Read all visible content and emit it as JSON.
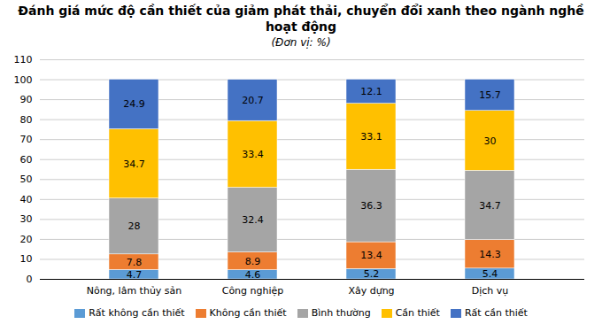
{
  "chart_data": {
    "type": "bar",
    "stacked": true,
    "title": "Đánh giá mức độ cần thiết của giảm phát thải, chuyển đổi xanh theo ngành nghề hoạt động",
    "subtitle": "(Đơn vị: %)",
    "categories": [
      "Nông, lâm thủy sản",
      "Công nghiệp",
      "Xây dựng",
      "Dịch vụ"
    ],
    "series": [
      {
        "name": "Rất không cần thiết",
        "color": "#5B9BD5",
        "values": [
          4.7,
          4.6,
          5.2,
          5.4
        ]
      },
      {
        "name": "Không cần thiết",
        "color": "#ED7D31",
        "values": [
          7.8,
          8.9,
          13.4,
          14.3
        ]
      },
      {
        "name": "Bình thường",
        "color": "#A5A5A5",
        "values": [
          28,
          32.4,
          36.3,
          34.7
        ]
      },
      {
        "name": "Cần thiết",
        "color": "#FFC000",
        "values": [
          34.7,
          33.4,
          33.1,
          30
        ]
      },
      {
        "name": "Rất cần thiết",
        "color": "#4472C4",
        "values": [
          24.9,
          20.7,
          12.1,
          15.7
        ]
      }
    ],
    "ylim": [
      0,
      110
    ],
    "yticks": [
      0,
      10,
      20,
      30,
      40,
      50,
      60,
      70,
      80,
      90,
      100,
      110
    ],
    "grid": true,
    "data_labels": true,
    "legend": "bottom"
  }
}
